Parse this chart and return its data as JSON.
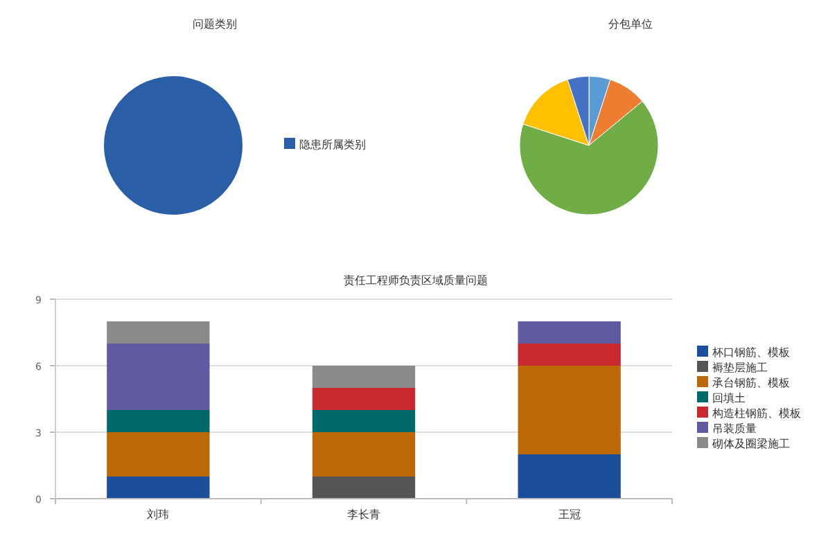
{
  "chart_data": [
    {
      "type": "pie",
      "title": "问题类别",
      "categories": [
        "隐患所属类别"
      ],
      "values": [
        100
      ],
      "colors": [
        "#2a5fa8"
      ],
      "legend": "right"
    },
    {
      "type": "pie",
      "title": "分包单位",
      "categories": [
        null,
        null,
        null,
        null,
        null
      ],
      "values": [
        5,
        9,
        66,
        15,
        5
      ],
      "colors": [
        "#5b9bd5",
        "#ed7d31",
        "#70ad47",
        "#ffc000",
        "#4472c4"
      ]
    },
    {
      "type": "bar",
      "title": "责任工程师负责区域质量问题",
      "categories": [
        "刘玮",
        "李长青",
        "王冠"
      ],
      "stacked": true,
      "ylim": [
        0,
        9
      ],
      "yticks": [
        0,
        3,
        6,
        9
      ],
      "grid": "y",
      "legend": "right",
      "series": [
        {
          "name": "杯口钢筋、模板",
          "color": "#1b4f9c",
          "values": [
            1,
            null,
            2
          ]
        },
        {
          "name": "褥垫层施工",
          "color": "#555555",
          "values": [
            null,
            1,
            null
          ]
        },
        {
          "name": "承台钢筋、模板",
          "color": "#bb6908",
          "values": [
            2,
            2,
            4
          ]
        },
        {
          "name": "回填土",
          "color": "#006a6a",
          "values": [
            1,
            1,
            null
          ]
        },
        {
          "name": "构造柱钢筋、模板",
          "color": "#c9282f",
          "values": [
            null,
            1,
            1
          ]
        },
        {
          "name": "吊装质量",
          "color": "#6159a1",
          "values": [
            3,
            null,
            1
          ]
        },
        {
          "name": "砌体及圈梁施工",
          "color": "#8a8a8a",
          "values": [
            1,
            1,
            null
          ]
        }
      ]
    }
  ]
}
